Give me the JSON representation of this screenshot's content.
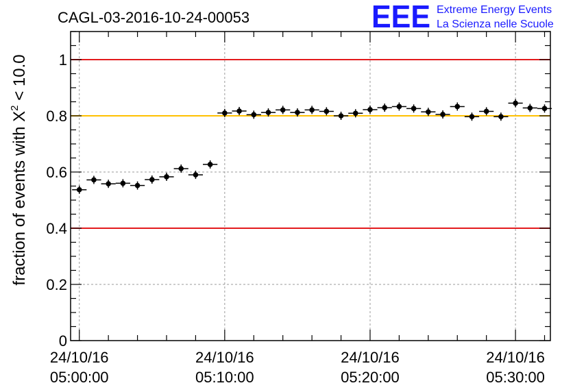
{
  "title": "CAGL-03-2016-10-24-00053",
  "logo": {
    "mark": "EEE",
    "line1": "Extreme Energy Events",
    "line2": "La Scienza nelle Scuole",
    "color": "#1a1aff"
  },
  "chart_data": {
    "type": "scatter",
    "title": "CAGL-03-2016-10-24-00053",
    "ylabel_main": "fraction of events with X",
    "ylabel_sup": "2",
    "ylabel_tail": " < 10.0",
    "xlabel": "",
    "x_ticks": [
      {
        "date": "24/10/16",
        "time": "05:00:00",
        "minute": 0
      },
      {
        "date": "24/10/16",
        "time": "05:10:00",
        "minute": 10
      },
      {
        "date": "24/10/16",
        "time": "05:20:00",
        "minute": 20
      },
      {
        "date": "24/10/16",
        "time": "05:30:00",
        "minute": 30
      }
    ],
    "x_range_minutes": [
      -0.6,
      32.4
    ],
    "x_unit": "minutes after 24/10/16 05:00:00",
    "ylim": [
      0,
      1.1
    ],
    "y_ticks": [
      "0",
      "0.2",
      "0.4",
      "0.6",
      "0.8",
      "1"
    ],
    "y_tick_values": [
      0,
      0.2,
      0.4,
      0.6,
      0.8,
      1
    ],
    "grid": true,
    "reference_lines": [
      {
        "y": 1.0,
        "color": "#e31a1c"
      },
      {
        "y": 0.8,
        "color": "#ffc000"
      },
      {
        "y": 0.4,
        "color": "#e31a1c"
      }
    ],
    "marker_color": "#000000",
    "bin_width_minutes": 1,
    "x": [
      0,
      1,
      2,
      3,
      4,
      5,
      6,
      7,
      8,
      9,
      10,
      11,
      12,
      13,
      14,
      15,
      16,
      17,
      18,
      19,
      20,
      21,
      22,
      23,
      24,
      25,
      26,
      27,
      28,
      29,
      30,
      31,
      32
    ],
    "y": [
      0.537,
      0.572,
      0.558,
      0.56,
      0.552,
      0.573,
      0.583,
      0.612,
      0.59,
      0.627,
      0.81,
      0.817,
      0.804,
      0.812,
      0.821,
      0.812,
      0.821,
      0.816,
      0.8,
      0.809,
      0.822,
      0.829,
      0.833,
      0.826,
      0.814,
      0.805,
      0.833,
      0.797,
      0.816,
      0.797,
      0.845,
      0.828,
      0.826
    ]
  }
}
